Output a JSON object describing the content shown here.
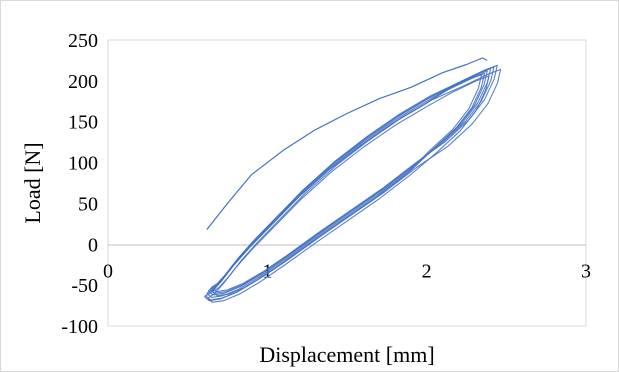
{
  "chart_data": {
    "type": "line",
    "xlabel": "Displacement [mm]",
    "ylabel": "Load [N]",
    "xlim": [
      0,
      3
    ],
    "ylim": [
      -100,
      250
    ],
    "xticks": [
      0,
      1,
      2,
      3
    ],
    "yticks": [
      -100,
      -50,
      0,
      50,
      100,
      150,
      200,
      250
    ],
    "grid": false,
    "legend": "none",
    "series_color": "#4472c4",
    "series": [
      {
        "style": "initial-loading",
        "x": [
          0.62,
          0.75,
          0.9,
          1.1,
          1.3,
          1.5,
          1.7,
          1.9,
          2.1,
          2.25,
          2.35,
          2.38
        ],
        "y": [
          18,
          50,
          85,
          115,
          140,
          160,
          178,
          192,
          210,
          220,
          228,
          225
        ]
      },
      {
        "style": "hysteresis-loop",
        "loading_x": [
          0.62,
          0.66,
          0.72,
          0.8,
          0.9,
          1.05,
          1.2,
          1.4,
          1.6,
          1.8,
          2.0,
          2.15,
          2.3,
          2.38
        ],
        "loading_y": [
          -60,
          -55,
          -42,
          -22,
          0,
          30,
          60,
          95,
          125,
          152,
          175,
          192,
          206,
          212
        ],
        "unloading_x": [
          2.38,
          2.36,
          2.3,
          2.2,
          2.05,
          1.9,
          1.7,
          1.5,
          1.3,
          1.1,
          0.95,
          0.82,
          0.72,
          0.65,
          0.62
        ],
        "unloading_y": [
          212,
          195,
          170,
          145,
          118,
          92,
          62,
          35,
          8,
          -20,
          -40,
          -55,
          -63,
          -65,
          -60
        ]
      }
    ]
  }
}
